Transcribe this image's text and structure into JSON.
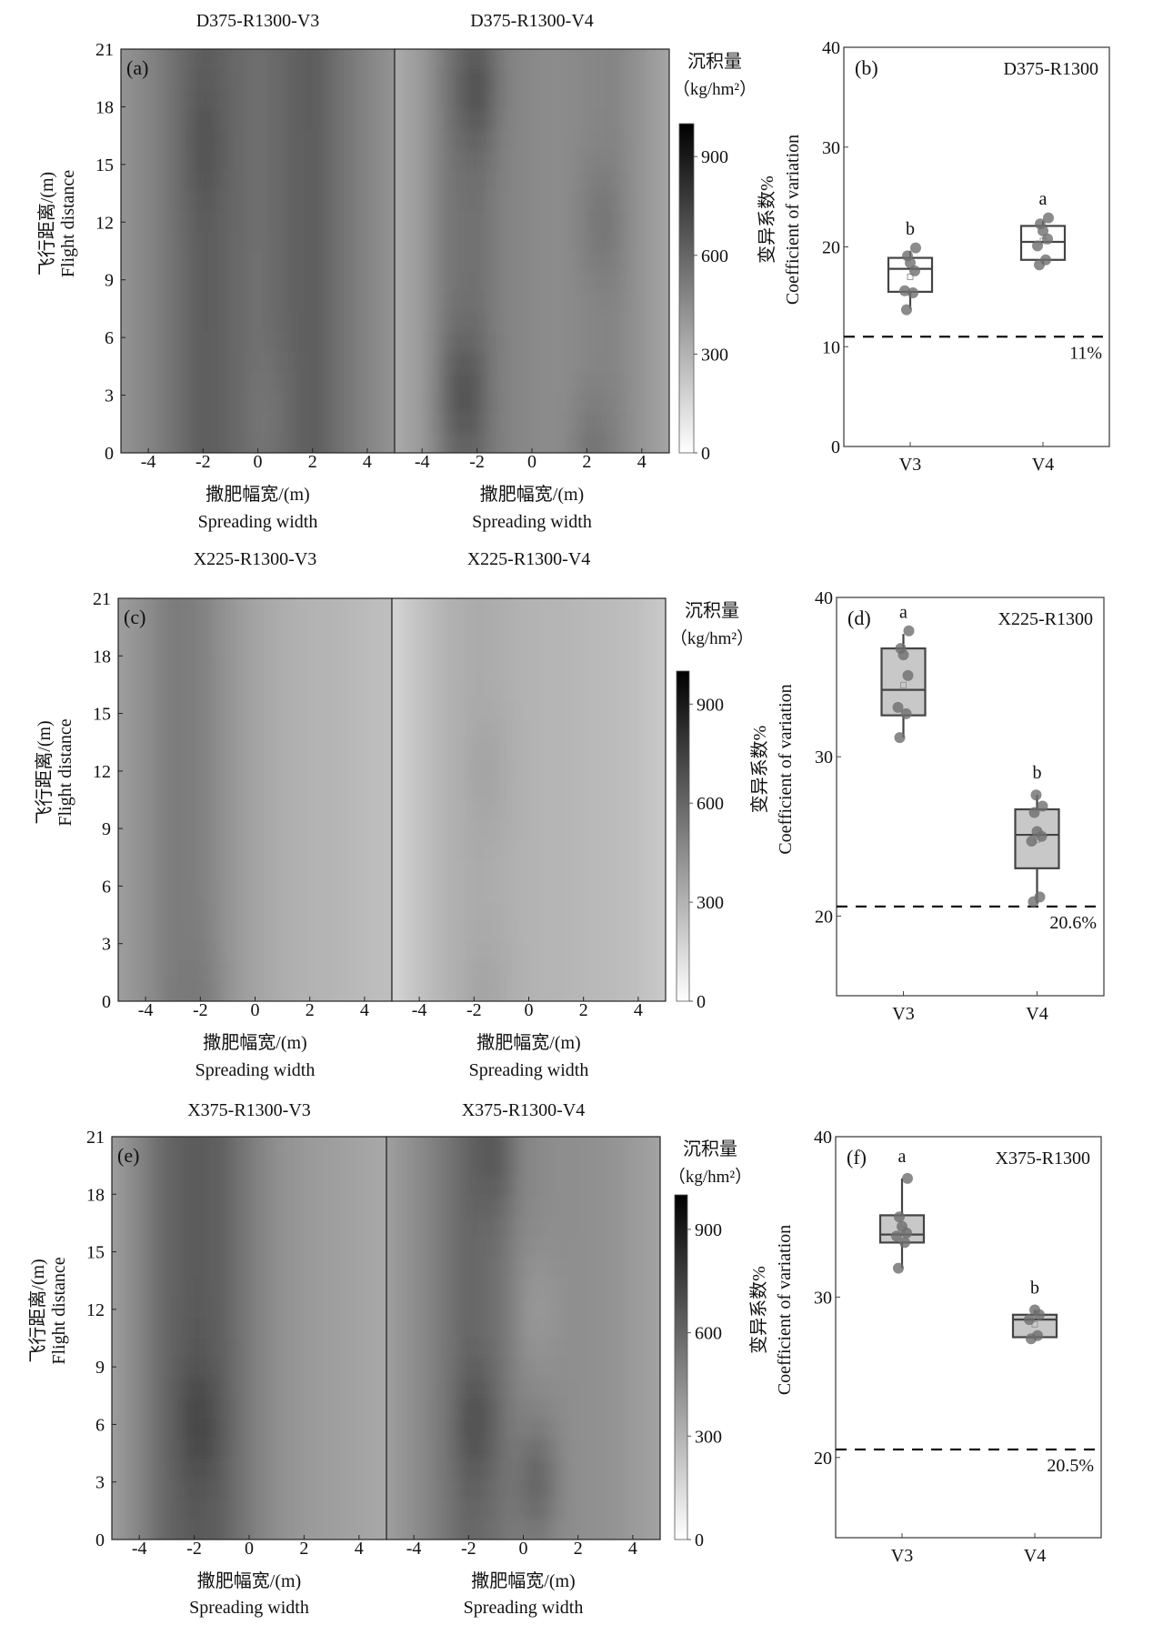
{
  "common": {
    "heat_xticks": [
      -4,
      -2,
      0,
      2,
      4
    ],
    "heat_yticks": [
      0,
      3,
      6,
      9,
      12,
      15,
      18,
      21
    ],
    "heat_xlim": [
      -5,
      5
    ],
    "heat_ylim": [
      0,
      21
    ],
    "xlabel_cn": "撒肥幅宽/(m)",
    "xlabel_en": "Spreading width",
    "ylabel_cn": "飞行距离/(m)",
    "ylabel_en": "Flight distance",
    "colorbar_label": "沉积量",
    "colorbar_unit": "（kg/hm²）",
    "colorbar_ticks": [
      0,
      300,
      600,
      900
    ],
    "colorbar_range": [
      0,
      1000
    ],
    "box_ylabel_cn": "变异系数%",
    "box_ylabel_en": "Coefficient of variation"
  },
  "chart_data": [
    {
      "type": "heatmap",
      "panel": "(a)",
      "maps": [
        {
          "title": "D375-R1300-V3",
          "x": [
            -5,
            -4,
            -3,
            -2,
            -1,
            0,
            1,
            2,
            3,
            4,
            5
          ],
          "profile": [
            420,
            480,
            560,
            640,
            600,
            560,
            600,
            640,
            560,
            480,
            420
          ],
          "spots": [
            {
              "x": -2,
              "y": 16,
              "v": 40
            },
            {
              "x": 0.5,
              "y": 2,
              "v": -30
            }
          ]
        },
        {
          "title": "D375-R1300-V4",
          "x": [
            -5,
            -4,
            -3,
            -2,
            -1,
            0,
            1,
            2,
            3,
            4,
            5
          ],
          "profile": [
            330,
            400,
            540,
            560,
            490,
            460,
            450,
            470,
            480,
            420,
            350
          ],
          "spots": [
            {
              "x": -2.5,
              "y": 3,
              "v": 120
            },
            {
              "x": -2,
              "y": 19,
              "v": 120
            },
            {
              "x": 2.5,
              "y": 12,
              "v": 60
            },
            {
              "x": 2.2,
              "y": 0,
              "v": 70
            }
          ]
        }
      ]
    },
    {
      "type": "box",
      "panel": "(b)",
      "title": "D375-R1300",
      "ylim": [
        0,
        40
      ],
      "yticks": [
        0,
        10,
        20,
        30,
        40
      ],
      "threshold": 11,
      "threshold_label": "11%",
      "box_fill": "#ffffff",
      "groups": [
        {
          "name": "V3",
          "sig": "b",
          "q1": 15.5,
          "median": 17.8,
          "q3": 18.9,
          "whisker": [
            13.8,
            19.6
          ],
          "mean": 17.0,
          "points": [
            13.7,
            15.4,
            15.6,
            17.6,
            18.4,
            19.1,
            19.9
          ]
        },
        {
          "name": "V4",
          "sig": "a",
          "q1": 18.7,
          "median": 20.5,
          "q3": 22.1,
          "whisker": [
            18.3,
            22.6
          ],
          "mean": 20.6,
          "points": [
            18.2,
            18.7,
            20.1,
            20.8,
            21.6,
            22.3,
            22.9
          ]
        }
      ]
    },
    {
      "type": "heatmap",
      "panel": "(c)",
      "maps": [
        {
          "title": "X225-R1300-V3",
          "x": [
            -5,
            -4,
            -3,
            -2,
            -1,
            0,
            1,
            2,
            3,
            4,
            5
          ],
          "profile": [
            380,
            440,
            520,
            500,
            420,
            360,
            320,
            300,
            290,
            270,
            250
          ],
          "spots": [
            {
              "x": -1.8,
              "y": 0,
              "v": 30
            }
          ]
        },
        {
          "title": "X225-R1300-V4",
          "x": [
            -5,
            -4,
            -3,
            -2,
            -1,
            0,
            1,
            2,
            3,
            4,
            5
          ],
          "profile": [
            170,
            240,
            300,
            330,
            320,
            300,
            290,
            280,
            270,
            250,
            210
          ],
          "spots": [
            {
              "x": -1.5,
              "y": 12,
              "v": 30
            },
            {
              "x": -1.5,
              "y": 0,
              "v": 30
            }
          ]
        }
      ]
    },
    {
      "type": "box",
      "panel": "(d)",
      "title": "X225-R1300",
      "ylim": [
        15,
        40
      ],
      "yticks": [
        20,
        30,
        40
      ],
      "threshold": 20.6,
      "threshold_label": "20.6%",
      "box_fill": "#c8c8c8",
      "groups": [
        {
          "name": "V3",
          "sig": "a",
          "q1": 32.6,
          "median": 34.2,
          "q3": 36.8,
          "whisker": [
            31.2,
            37.7
          ],
          "mean": 34.5,
          "points": [
            31.2,
            32.7,
            33.1,
            35.1,
            36.4,
            36.8,
            37.9
          ]
        },
        {
          "name": "V4",
          "sig": "b",
          "q1": 23.0,
          "median": 25.1,
          "q3": 26.7,
          "whisker": [
            20.8,
            27.6
          ],
          "mean": 24.8,
          "points": [
            20.9,
            21.2,
            24.7,
            25.0,
            25.3,
            26.5,
            26.9,
            27.6
          ]
        }
      ]
    },
    {
      "type": "heatmap",
      "panel": "(e)",
      "maps": [
        {
          "title": "X375-R1300-V3",
          "x": [
            -5,
            -4,
            -3,
            -2,
            -1,
            0,
            1,
            2,
            3,
            4,
            5
          ],
          "profile": [
            380,
            480,
            600,
            650,
            620,
            520,
            440,
            400,
            380,
            360,
            340
          ],
          "spots": [
            {
              "x": -1.8,
              "y": 6,
              "v": 80
            }
          ]
        },
        {
          "title": "X375-R1300-V4",
          "x": [
            -5,
            -4,
            -3,
            -2,
            -1,
            0,
            1,
            2,
            3,
            4,
            5
          ],
          "profile": [
            380,
            440,
            520,
            600,
            560,
            470,
            450,
            440,
            430,
            400,
            360
          ],
          "spots": [
            {
              "x": 0.5,
              "y": 3,
              "v": 140
            },
            {
              "x": -1.7,
              "y": 6,
              "v": 90
            },
            {
              "x": -1,
              "y": 20,
              "v": 90
            },
            {
              "x": 0.5,
              "y": 12,
              "v": -50
            }
          ]
        }
      ]
    },
    {
      "type": "box",
      "panel": "(f)",
      "title": "X375-R1300",
      "ylim": [
        15,
        40
      ],
      "yticks": [
        20,
        30,
        40
      ],
      "threshold": 20.5,
      "threshold_label": "20.5%",
      "box_fill": "#c8c8c8",
      "groups": [
        {
          "name": "V3",
          "sig": "a",
          "q1": 33.4,
          "median": 33.9,
          "q3": 35.1,
          "whisker": [
            31.8,
            37.4
          ],
          "mean": 34.2,
          "points": [
            31.8,
            33.4,
            33.8,
            34.0,
            34.4,
            35.0,
            37.4
          ]
        },
        {
          "name": "V4",
          "sig": "b",
          "q1": 27.5,
          "median": 28.6,
          "q3": 28.9,
          "whisker": [
            27.4,
            29.2
          ],
          "mean": 28.3,
          "points": [
            27.4,
            27.6,
            28.6,
            28.9,
            29.2
          ]
        }
      ]
    }
  ]
}
